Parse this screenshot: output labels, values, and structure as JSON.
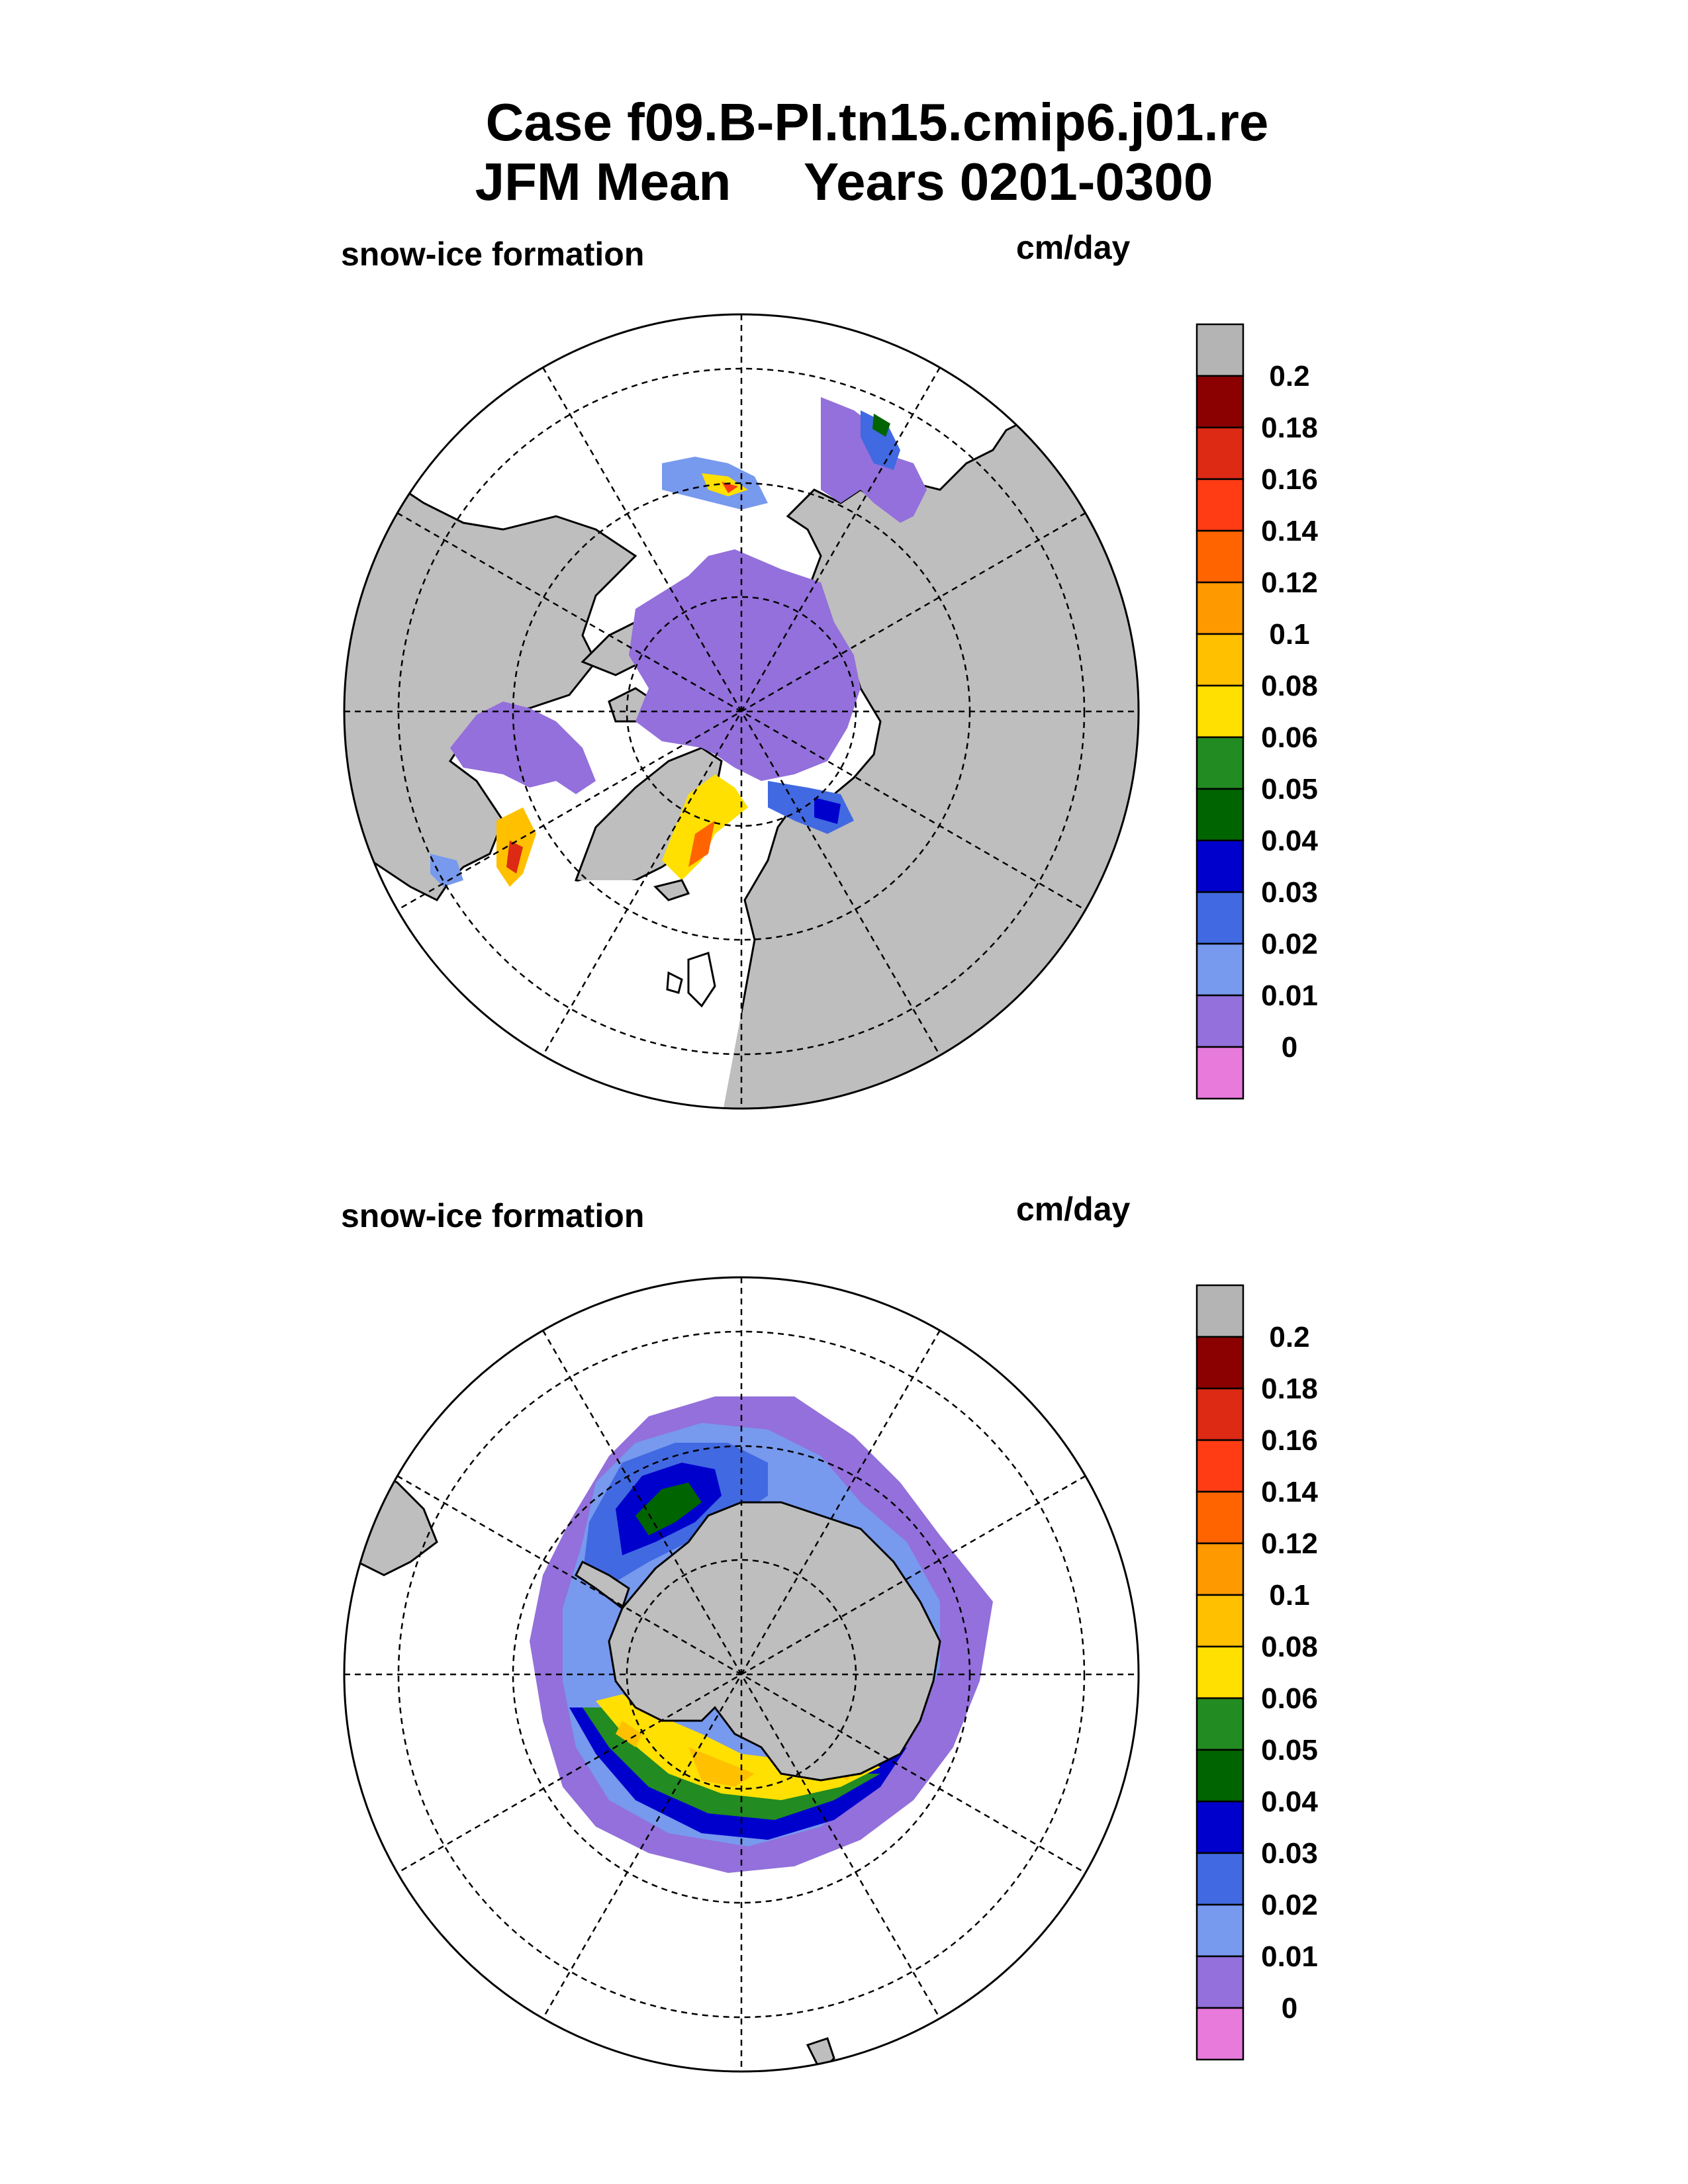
{
  "title": {
    "line1": "Case f09.B-PI.tn15.cmip6.j01.re",
    "season": "JFM Mean",
    "years": "Years 0201-0300"
  },
  "panels": [
    {
      "id": "north",
      "hemisphere": "Northern Hemisphere (north polar stereographic)",
      "variable_label": "snow-ice formation",
      "units_label": "cm/day"
    },
    {
      "id": "south",
      "hemisphere": "Southern Hemisphere (south polar stereographic)",
      "variable_label": "snow-ice formation",
      "units_label": "cm/day"
    }
  ],
  "colorbar": {
    "levels": [
      "0.2",
      "0.18",
      "0.16",
      "0.14",
      "0.12",
      "0.1",
      "0.08",
      "0.06",
      "0.05",
      "0.04",
      "0.03",
      "0.02",
      "0.01",
      "0"
    ],
    "colors": [
      "#b4b4b4",
      "#8b0000",
      "#dc2a14",
      "#ff3c14",
      "#ff6400",
      "#ff9900",
      "#ffc000",
      "#ffe000",
      "#228b22",
      "#006400",
      "#0000cd",
      "#4169e1",
      "#7799ee",
      "#9370db",
      "#e87adc"
    ]
  },
  "colors": {
    "land": "#bebebe",
    "ocean": "#ffffff"
  }
}
